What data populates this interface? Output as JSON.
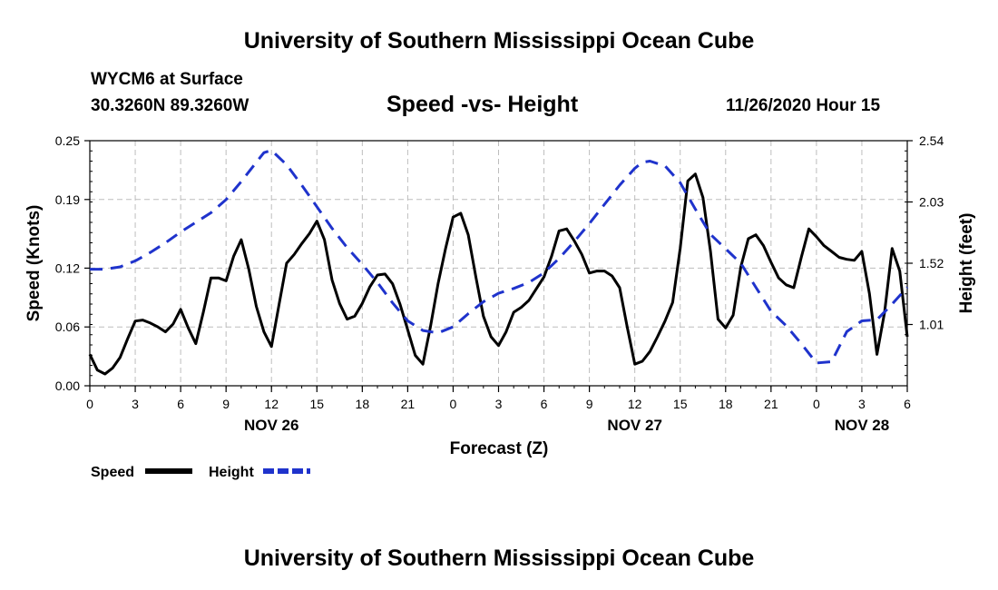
{
  "header": {
    "title": "University of Southern Mississippi Ocean Cube",
    "station": "WYCM6 at Surface",
    "coords": "30.3260N 89.3260W",
    "chart_title": "Speed -vs- Height",
    "timestamp": "11/26/2020 Hour 15"
  },
  "footer": {
    "title": "University of Southern Mississippi Ocean Cube"
  },
  "chart_data": {
    "type": "line",
    "title": "Speed -vs- Height",
    "xlabel": "Forecast (Z)",
    "ylabel": "Speed (Knots)",
    "y2label": "Height (feet)",
    "xlim": [
      0,
      54
    ],
    "ylim": [
      0,
      0.25
    ],
    "y2lim": [
      0.5,
      2.54
    ],
    "x_ticks": [
      0,
      3,
      6,
      9,
      12,
      15,
      18,
      21,
      24,
      27,
      30,
      33,
      36,
      39,
      42,
      45,
      48,
      51,
      54
    ],
    "x_tick_labels": [
      "0",
      "3",
      "6",
      "9",
      "12",
      "15",
      "18",
      "21",
      "0",
      "3",
      "6",
      "9",
      "12",
      "15",
      "18",
      "21",
      "0",
      "3",
      "6"
    ],
    "y_ticks": [
      0.0,
      0.06,
      0.12,
      0.19,
      0.25
    ],
    "y_tick_labels": [
      "0.00",
      "0.06",
      "0.12",
      "0.19",
      "0.25"
    ],
    "y2_ticks": [
      1.01,
      1.52,
      2.03,
      2.54
    ],
    "y2_tick_labels": [
      "1.01",
      "1.52",
      "2.03",
      "2.54"
    ],
    "date_labels": [
      {
        "x": 12,
        "label": "NOV 26"
      },
      {
        "x": 36,
        "label": "NOV 27"
      },
      {
        "x": 51,
        "label": "NOV 28"
      }
    ],
    "grid": true,
    "legend": "bottom-left",
    "series": [
      {
        "name": "Speed",
        "axis": "left",
        "color": "#000000",
        "dash": "solid",
        "x": [
          0,
          0.5,
          1,
          1.5,
          2,
          2.5,
          3,
          3.5,
          4,
          4.5,
          5,
          5.5,
          6,
          6.5,
          7,
          7.5,
          8,
          8.5,
          9,
          9.5,
          10,
          10.5,
          11,
          11.5,
          12,
          12.5,
          13,
          13.5,
          14,
          14.5,
          15,
          15.5,
          16,
          16.5,
          17,
          17.5,
          18,
          18.5,
          19,
          19.5,
          20,
          20.5,
          21,
          21.5,
          22,
          22.5,
          23,
          23.5,
          24,
          24.5,
          25,
          25.5,
          26,
          26.5,
          27,
          27.5,
          28,
          28.5,
          29,
          29.5,
          30,
          30.5,
          31,
          31.5,
          32,
          32.5,
          33,
          33.5,
          34,
          34.5,
          35,
          35.5,
          36,
          36.5,
          37,
          37.5,
          38,
          38.5,
          39,
          39.5,
          40,
          40.5,
          41,
          41.5,
          42,
          42.5,
          43,
          43.5,
          44,
          44.5,
          45,
          45.5,
          46,
          46.5,
          47,
          47.5,
          48,
          48.5,
          49,
          49.5,
          50,
          50.5,
          51,
          51.5,
          52,
          52.5,
          53,
          53.5,
          54
        ],
        "values": [
          0.032,
          0.016,
          0.012,
          0.018,
          0.029,
          0.048,
          0.066,
          0.067,
          0.064,
          0.06,
          0.055,
          0.063,
          0.078,
          0.059,
          0.043,
          0.075,
          0.11,
          0.11,
          0.107,
          0.132,
          0.149,
          0.119,
          0.081,
          0.055,
          0.04,
          0.083,
          0.125,
          0.134,
          0.145,
          0.155,
          0.168,
          0.149,
          0.108,
          0.084,
          0.068,
          0.071,
          0.084,
          0.101,
          0.113,
          0.114,
          0.104,
          0.083,
          0.057,
          0.031,
          0.022,
          0.06,
          0.104,
          0.14,
          0.172,
          0.176,
          0.154,
          0.111,
          0.071,
          0.05,
          0.041,
          0.055,
          0.075,
          0.08,
          0.087,
          0.099,
          0.111,
          0.132,
          0.158,
          0.16,
          0.148,
          0.134,
          0.115,
          0.117,
          0.117,
          0.112,
          0.1,
          0.06,
          0.022,
          0.025,
          0.035,
          0.05,
          0.066,
          0.085,
          0.14,
          0.209,
          0.216,
          0.192,
          0.137,
          0.068,
          0.059,
          0.072,
          0.121,
          0.15,
          0.154,
          0.143,
          0.126,
          0.11,
          0.103,
          0.1,
          0.131,
          0.16,
          0.152,
          0.143,
          0.137,
          0.131,
          0.129,
          0.128,
          0.137,
          0.094,
          0.032,
          0.075,
          0.14,
          0.117,
          0.05
        ]
      },
      {
        "name": "Height",
        "axis": "right",
        "color": "#1f33cc",
        "dash": "dashed",
        "x": [
          0,
          1,
          2,
          3,
          4,
          5,
          6,
          7,
          8,
          9,
          10,
          11,
          11.5,
          12,
          13,
          14,
          15,
          16,
          17,
          18,
          19,
          20,
          21,
          22,
          23,
          24,
          25,
          26,
          27,
          28,
          29,
          30,
          31,
          32,
          33,
          34,
          35,
          36,
          36.5,
          37,
          38,
          39,
          40,
          41,
          42,
          43,
          44,
          45,
          46,
          47,
          48,
          49,
          50,
          51,
          52,
          53,
          54
        ],
        "values": [
          1.47,
          1.47,
          1.49,
          1.54,
          1.61,
          1.69,
          1.78,
          1.86,
          1.94,
          2.05,
          2.2,
          2.36,
          2.44,
          2.46,
          2.34,
          2.17,
          1.99,
          1.81,
          1.65,
          1.51,
          1.36,
          1.19,
          1.04,
          0.96,
          0.94,
          0.99,
          1.1,
          1.2,
          1.27,
          1.31,
          1.36,
          1.44,
          1.56,
          1.7,
          1.85,
          2.01,
          2.17,
          2.31,
          2.36,
          2.37,
          2.33,
          2.19,
          1.97,
          1.76,
          1.64,
          1.52,
          1.32,
          1.12,
          1.0,
          0.85,
          0.69,
          0.7,
          0.95,
          1.04,
          1.05,
          1.18,
          1.32
        ]
      }
    ]
  }
}
